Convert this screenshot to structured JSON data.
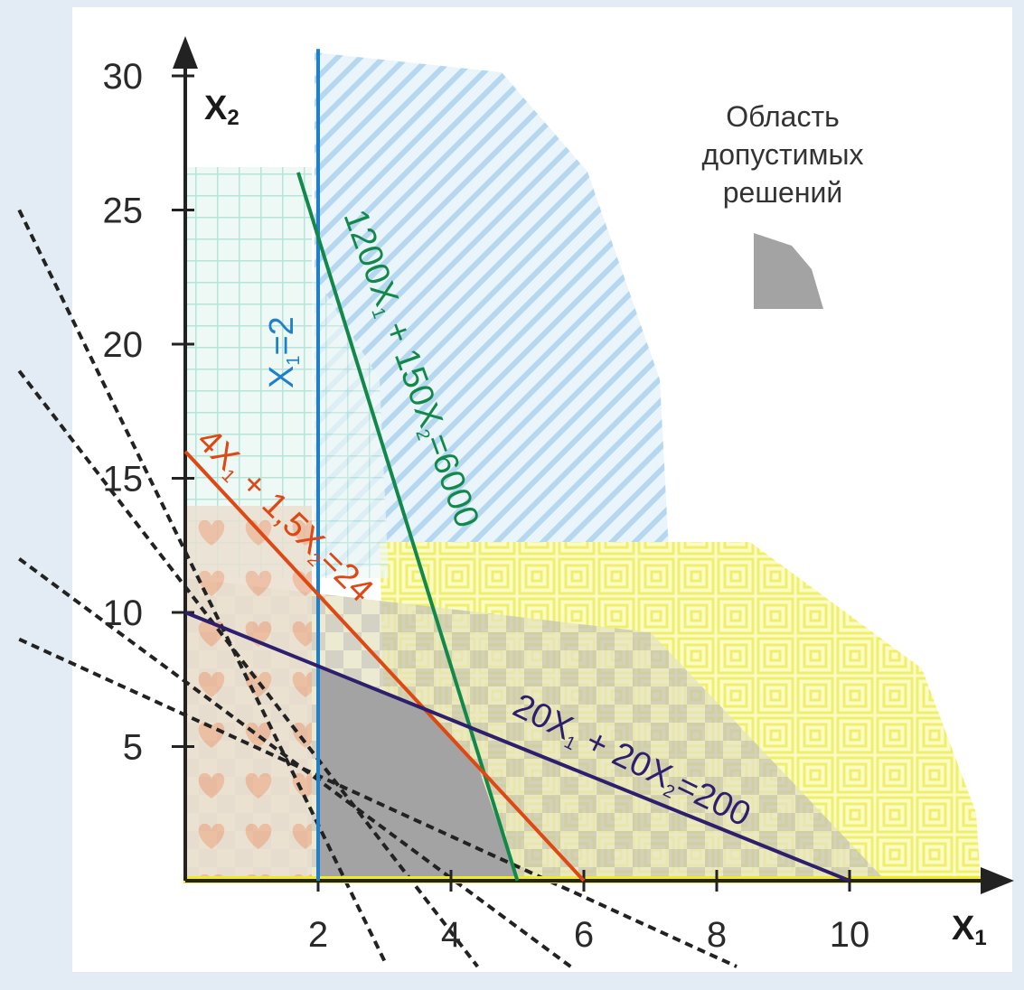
{
  "chart_data": {
    "type": "line",
    "title": "",
    "xlabel": "x₁",
    "ylabel": "x₂",
    "xlim": [
      -0.2,
      11.5
    ],
    "ylim": [
      0,
      31
    ],
    "x_ticks": [
      2,
      4,
      6,
      8,
      10
    ],
    "y_ticks": [
      5,
      10,
      15,
      20,
      25,
      30
    ],
    "axis_labels": {
      "x_main": "X",
      "x_sub": "1",
      "y_main": "X",
      "y_sub": "2"
    },
    "constraints": [
      {
        "key": "c_blue",
        "points": [
          [
            2,
            0
          ],
          [
            2,
            31
          ]
        ],
        "color": "#1f7fc8",
        "label_parts": [
          [
            "X",
            ""
          ],
          [
            "1",
            "sub"
          ],
          [
            "=2",
            ""
          ]
        ]
      },
      {
        "key": "c_green",
        "points": [
          [
            1.7,
            26.4
          ],
          [
            5,
            0
          ]
        ],
        "color": "#12894a",
        "label_parts": [
          [
            "1200X",
            ""
          ],
          [
            "1",
            "sub"
          ],
          [
            " + 150X",
            ""
          ],
          [
            "2",
            "sub"
          ],
          [
            "=6000",
            ""
          ]
        ]
      },
      {
        "key": "c_red",
        "points": [
          [
            0,
            16
          ],
          [
            6,
            0
          ]
        ],
        "color": "#de4814",
        "label_parts": [
          [
            "4X",
            ""
          ],
          [
            "1",
            "sub"
          ],
          [
            " + 1,5X",
            ""
          ],
          [
            "2",
            "sub"
          ],
          [
            "=24",
            ""
          ]
        ]
      },
      {
        "key": "c_purple",
        "points": [
          [
            0,
            10
          ],
          [
            10,
            0
          ]
        ],
        "color": "#2d1f6d",
        "label_parts": [
          [
            "20X",
            ""
          ],
          [
            "1",
            "sub"
          ],
          [
            " + 20X",
            ""
          ],
          [
            "2",
            "sub"
          ],
          [
            "=200",
            ""
          ]
        ]
      }
    ],
    "feasible_region": [
      [
        2,
        0
      ],
      [
        2,
        8
      ],
      [
        3.6,
        6.4
      ],
      [
        4.4,
        4.3
      ],
      [
        5,
        0
      ]
    ],
    "objective_level_lines": [
      {
        "points": [
          [
            -2.5,
            25
          ],
          [
            3,
            -3
          ]
        ]
      },
      {
        "points": [
          [
            -2.5,
            19
          ],
          [
            4.4,
            -3.2
          ]
        ]
      },
      {
        "points": [
          [
            -2.5,
            12
          ],
          [
            5.8,
            -3.2
          ]
        ]
      },
      {
        "points": [
          [
            -2.5,
            9
          ],
          [
            8.3,
            -3.2
          ]
        ]
      }
    ],
    "legend": {
      "lines": [
        "Область",
        "допустимых",
        "решений"
      ],
      "swatch_color": "#a3a3a3",
      "position": "top-right"
    },
    "grid": false
  }
}
